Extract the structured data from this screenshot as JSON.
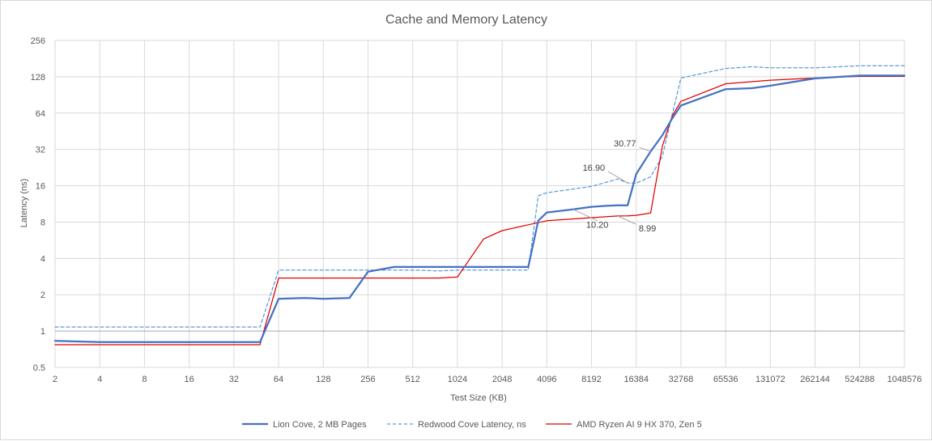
{
  "chart_data": {
    "type": "line",
    "title": "Cache and Memory Latency",
    "xlabel": "Test Size (KB)",
    "ylabel": "Latency (ns)",
    "x_scale": "log2",
    "y_scale": "log2",
    "xlim": [
      2,
      1048576
    ],
    "ylim": [
      0.5,
      256
    ],
    "x_ticks": [
      "2",
      "4",
      "8",
      "16",
      "32",
      "64",
      "128",
      "256",
      "512",
      "1024",
      "2048",
      "4096",
      "8192",
      "16384",
      "32768",
      "65536",
      "131072",
      "262144",
      "524288",
      "1048576"
    ],
    "y_ticks": [
      "0.5",
      "1",
      "2",
      "4",
      "8",
      "16",
      "32",
      "64",
      "128",
      "256"
    ],
    "grid": true,
    "legend_position": "bottom",
    "series": [
      {
        "name": "Lion Cove, 2 MB Pages",
        "color": "#4472c4",
        "style": "solid",
        "x": [
          2,
          4,
          8,
          16,
          32,
          48,
          64,
          96,
          128,
          192,
          256,
          384,
          512,
          768,
          1024,
          1536,
          2048,
          3072,
          3584,
          4096,
          6144,
          8192,
          10240,
          12288,
          14336,
          16384,
          20480,
          24576,
          28672,
          32768,
          65536,
          98304,
          131072,
          262144,
          524288,
          1048576
        ],
        "y": [
          0.83,
          0.81,
          0.81,
          0.81,
          0.81,
          0.81,
          1.85,
          1.88,
          1.85,
          1.88,
          3.1,
          3.4,
          3.4,
          3.4,
          3.4,
          3.4,
          3.4,
          3.4,
          8.2,
          9.6,
          10.2,
          10.7,
          10.9,
          11.0,
          11.0,
          20.0,
          30.77,
          42,
          58,
          74,
          101,
          103,
          108,
          124,
          131,
          131
        ]
      },
      {
        "name": "Redwood Cove Latency, ns",
        "color": "#5b9bd5",
        "style": "dashed",
        "x": [
          2,
          4,
          8,
          16,
          32,
          48,
          64,
          128,
          256,
          512,
          768,
          1024,
          2048,
          3072,
          3584,
          4096,
          8192,
          12288,
          14336,
          16384,
          20480,
          24576,
          32768,
          65536,
          98304,
          131072,
          262144,
          524288,
          1048576
        ],
        "y": [
          1.08,
          1.08,
          1.08,
          1.08,
          1.08,
          1.08,
          3.2,
          3.2,
          3.2,
          3.2,
          3.15,
          3.2,
          3.2,
          3.2,
          13.2,
          14.0,
          15.8,
          18.2,
          16.9,
          16.8,
          19,
          28,
          125,
          150,
          155,
          152,
          152,
          158,
          158
        ]
      },
      {
        "name": "AMD Ryzen AI 9 HX 370, Zen 5",
        "color": "#e00000",
        "style": "solid",
        "x": [
          2,
          4,
          8,
          16,
          32,
          48,
          64,
          128,
          256,
          512,
          768,
          1024,
          1536,
          2048,
          3072,
          4096,
          8192,
          12288,
          14336,
          16384,
          20480,
          24576,
          28672,
          32768,
          65536,
          131072,
          262144,
          524288,
          1048576
        ],
        "y": [
          0.77,
          0.77,
          0.77,
          0.77,
          0.77,
          0.77,
          2.75,
          2.75,
          2.75,
          2.75,
          2.75,
          2.8,
          5.8,
          6.8,
          7.6,
          8.2,
          8.7,
          8.99,
          9.0,
          9.1,
          9.5,
          34,
          61,
          80,
          112,
          120,
          125,
          129,
          129
        ]
      }
    ],
    "annotations": [
      {
        "label": "30.77",
        "series": "Lion Cove, 2 MB Pages",
        "x": 20480,
        "y": 30.77
      },
      {
        "label": "16.90",
        "series": "Redwood Cove Latency, ns",
        "x": 14336,
        "y": 16.9
      },
      {
        "label": "10.20",
        "series": "Lion Cove, 2 MB Pages",
        "x": 6144,
        "y": 10.2
      },
      {
        "label": "8.99",
        "series": "AMD Ryzen AI 9 HX 370, Zen 5",
        "x": 12288,
        "y": 8.99
      }
    ]
  }
}
